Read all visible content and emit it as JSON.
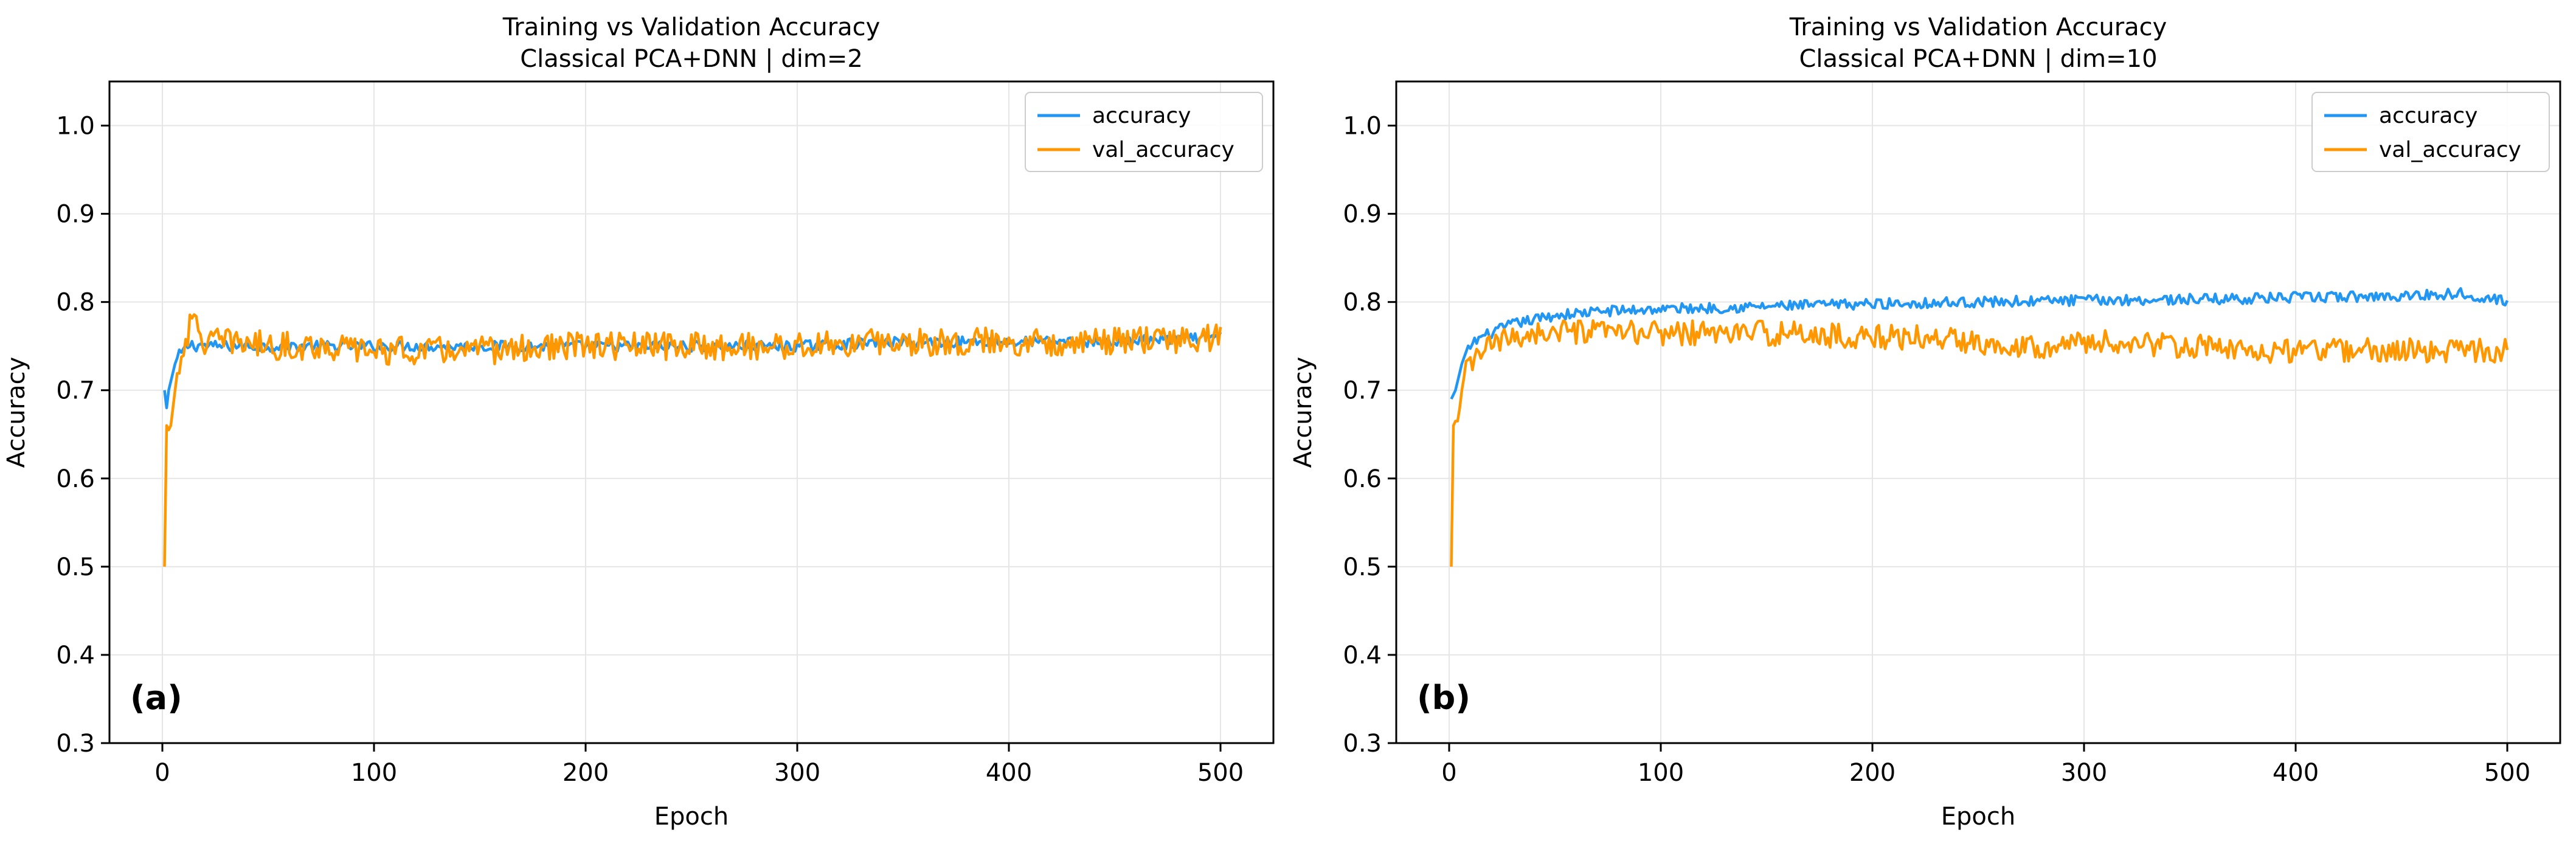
{
  "colors": {
    "accuracy": "#2196f3",
    "val_accuracy": "#ff9800"
  },
  "chart_data": [
    {
      "type": "line",
      "panel_label": "(a)",
      "title": "Training vs Validation Accuracy",
      "subtitle": "Classical PCA+DNN | dim=2",
      "xlabel": "Epoch",
      "ylabel": "Accuracy",
      "xlim": [
        -25,
        525
      ],
      "ylim": [
        0.3,
        1.05
      ],
      "xticks": [
        0,
        100,
        200,
        300,
        400,
        500
      ],
      "yticks": [
        0.3,
        0.4,
        0.5,
        0.6,
        0.7,
        0.8,
        0.9,
        1.0
      ],
      "xtick_labels": [
        "0",
        "100",
        "200",
        "300",
        "400",
        "500"
      ],
      "ytick_labels": [
        "0.3",
        "0.4",
        "0.5",
        "0.6",
        "0.7",
        "0.8",
        "0.9",
        "1.0"
      ],
      "grid": true,
      "legend_position": "top-right",
      "series": [
        {
          "name": "accuracy",
          "color_key": "accuracy",
          "x": [
            1,
            2,
            3,
            4,
            5,
            6,
            8,
            10,
            12,
            14,
            16,
            18,
            20,
            25,
            30,
            40,
            50,
            75,
            100,
            150,
            200,
            250,
            300,
            350,
            400,
            450,
            500
          ],
          "y": [
            0.7,
            0.68,
            0.7,
            0.71,
            0.72,
            0.73,
            0.74,
            0.745,
            0.75,
            0.752,
            0.75,
            0.752,
            0.75,
            0.75,
            0.75,
            0.75,
            0.75,
            0.75,
            0.75,
            0.75,
            0.75,
            0.75,
            0.75,
            0.755,
            0.755,
            0.755,
            0.76
          ],
          "noise_amplitude": 0.006
        },
        {
          "name": "val_accuracy",
          "color_key": "val_accuracy",
          "x": [
            1,
            2,
            3,
            4,
            5,
            6,
            8,
            10,
            12,
            14,
            16,
            18,
            20,
            25,
            30,
            40,
            50,
            75,
            100,
            150,
            200,
            250,
            300,
            350,
            400,
            450,
            500
          ],
          "y": [
            0.5,
            0.66,
            0.655,
            0.66,
            0.68,
            0.7,
            0.73,
            0.75,
            0.765,
            0.775,
            0.775,
            0.765,
            0.755,
            0.755,
            0.755,
            0.755,
            0.75,
            0.75,
            0.745,
            0.745,
            0.75,
            0.75,
            0.75,
            0.755,
            0.755,
            0.755,
            0.76
          ],
          "noise_amplitude": 0.016
        }
      ]
    },
    {
      "type": "line",
      "panel_label": "(b)",
      "title": "Training vs Validation Accuracy",
      "subtitle": "Classical PCA+DNN | dim=10",
      "xlabel": "Epoch",
      "ylabel": "Accuracy",
      "xlim": [
        -25,
        525
      ],
      "ylim": [
        0.3,
        1.05
      ],
      "xticks": [
        0,
        100,
        200,
        300,
        400,
        500
      ],
      "yticks": [
        0.3,
        0.4,
        0.5,
        0.6,
        0.7,
        0.8,
        0.9,
        1.0
      ],
      "xtick_labels": [
        "0",
        "100",
        "200",
        "300",
        "400",
        "500"
      ],
      "ytick_labels": [
        "0.3",
        "0.4",
        "0.5",
        "0.6",
        "0.7",
        "0.8",
        "0.9",
        "1.0"
      ],
      "grid": true,
      "legend_position": "top-right",
      "series": [
        {
          "name": "accuracy",
          "color_key": "accuracy",
          "x": [
            1,
            2,
            3,
            4,
            5,
            6,
            8,
            10,
            12,
            15,
            20,
            25,
            30,
            40,
            50,
            75,
            100,
            150,
            200,
            250,
            300,
            350,
            400,
            450,
            480,
            500
          ],
          "y": [
            0.69,
            0.695,
            0.7,
            0.71,
            0.72,
            0.73,
            0.74,
            0.75,
            0.755,
            0.76,
            0.765,
            0.77,
            0.775,
            0.78,
            0.785,
            0.79,
            0.792,
            0.795,
            0.798,
            0.8,
            0.802,
            0.803,
            0.805,
            0.807,
            0.81,
            0.8
          ],
          "noise_amplitude": 0.006
        },
        {
          "name": "val_accuracy",
          "color_key": "val_accuracy",
          "x": [
            1,
            2,
            3,
            4,
            5,
            6,
            8,
            10,
            12,
            15,
            20,
            25,
            30,
            40,
            50,
            75,
            100,
            150,
            200,
            220,
            250,
            280,
            300,
            350,
            370,
            400,
            450,
            500
          ],
          "y": [
            0.5,
            0.66,
            0.665,
            0.665,
            0.68,
            0.7,
            0.72,
            0.73,
            0.735,
            0.745,
            0.75,
            0.755,
            0.76,
            0.765,
            0.765,
            0.765,
            0.765,
            0.765,
            0.76,
            0.76,
            0.755,
            0.75,
            0.755,
            0.75,
            0.745,
            0.745,
            0.745,
            0.745
          ],
          "noise_amplitude": 0.014
        }
      ]
    }
  ]
}
